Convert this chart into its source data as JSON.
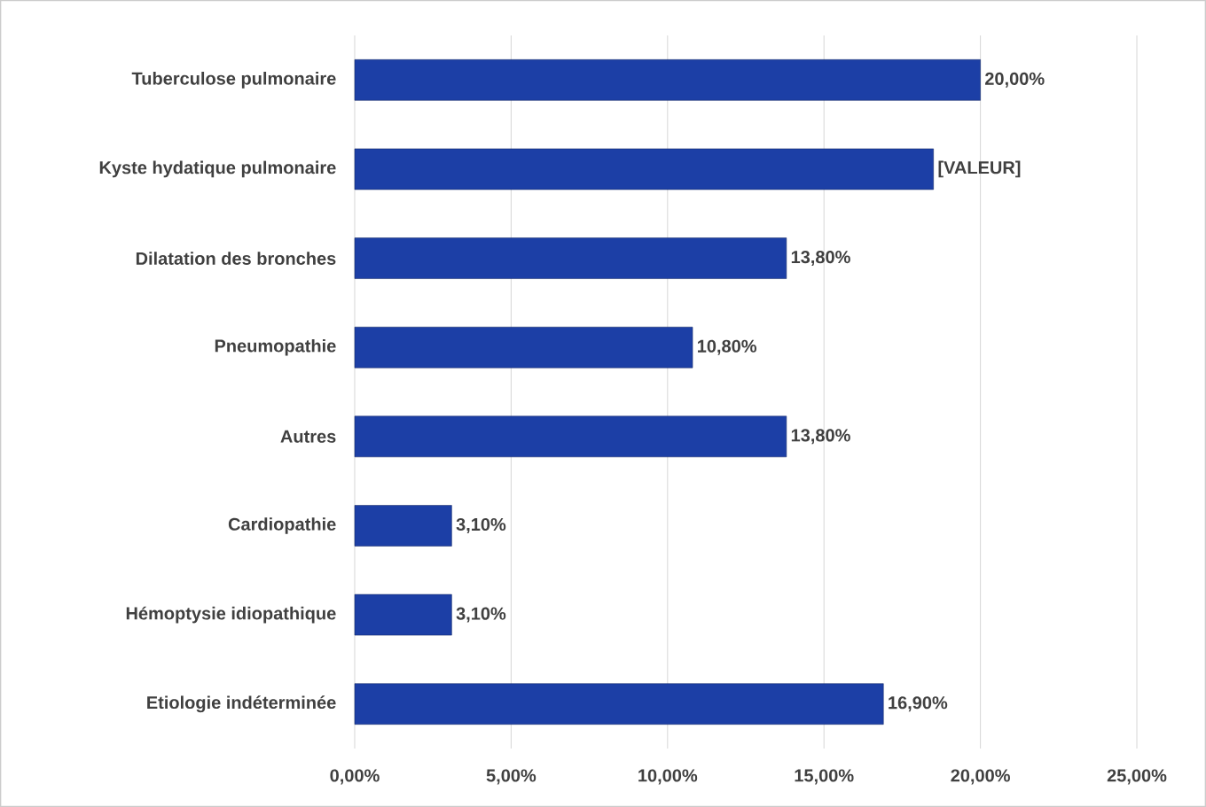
{
  "chart_data": {
    "type": "bar",
    "orientation": "horizontal",
    "categories": [
      "Tuberculose pulmonaire",
      "Kyste hydatique pulmonaire",
      "Dilatation des bronches",
      "Pneumopathie",
      "Autres",
      "Cardiopathie",
      "Hémoptysie idiopathique",
      "Etiologie indéterminée"
    ],
    "values": [
      20.0,
      18.5,
      13.8,
      10.8,
      13.8,
      3.1,
      3.1,
      16.9
    ],
    "value_labels": [
      "20,00%",
      "[VALEUR]",
      "13,80%",
      "10,80%",
      "13,80%",
      "3,10%",
      "3,10%",
      "16,90%"
    ],
    "color": "#1c3fa6",
    "xlim": [
      0,
      25
    ],
    "xticks": [
      {
        "value": 0,
        "label": "0,00%"
      },
      {
        "value": 5,
        "label": "5,00%"
      },
      {
        "value": 10,
        "label": "10,00%"
      },
      {
        "value": 15,
        "label": "15,00%"
      },
      {
        "value": 20,
        "label": "20,00%"
      },
      {
        "value": 25,
        "label": "25,00%"
      }
    ],
    "grid": "x"
  }
}
